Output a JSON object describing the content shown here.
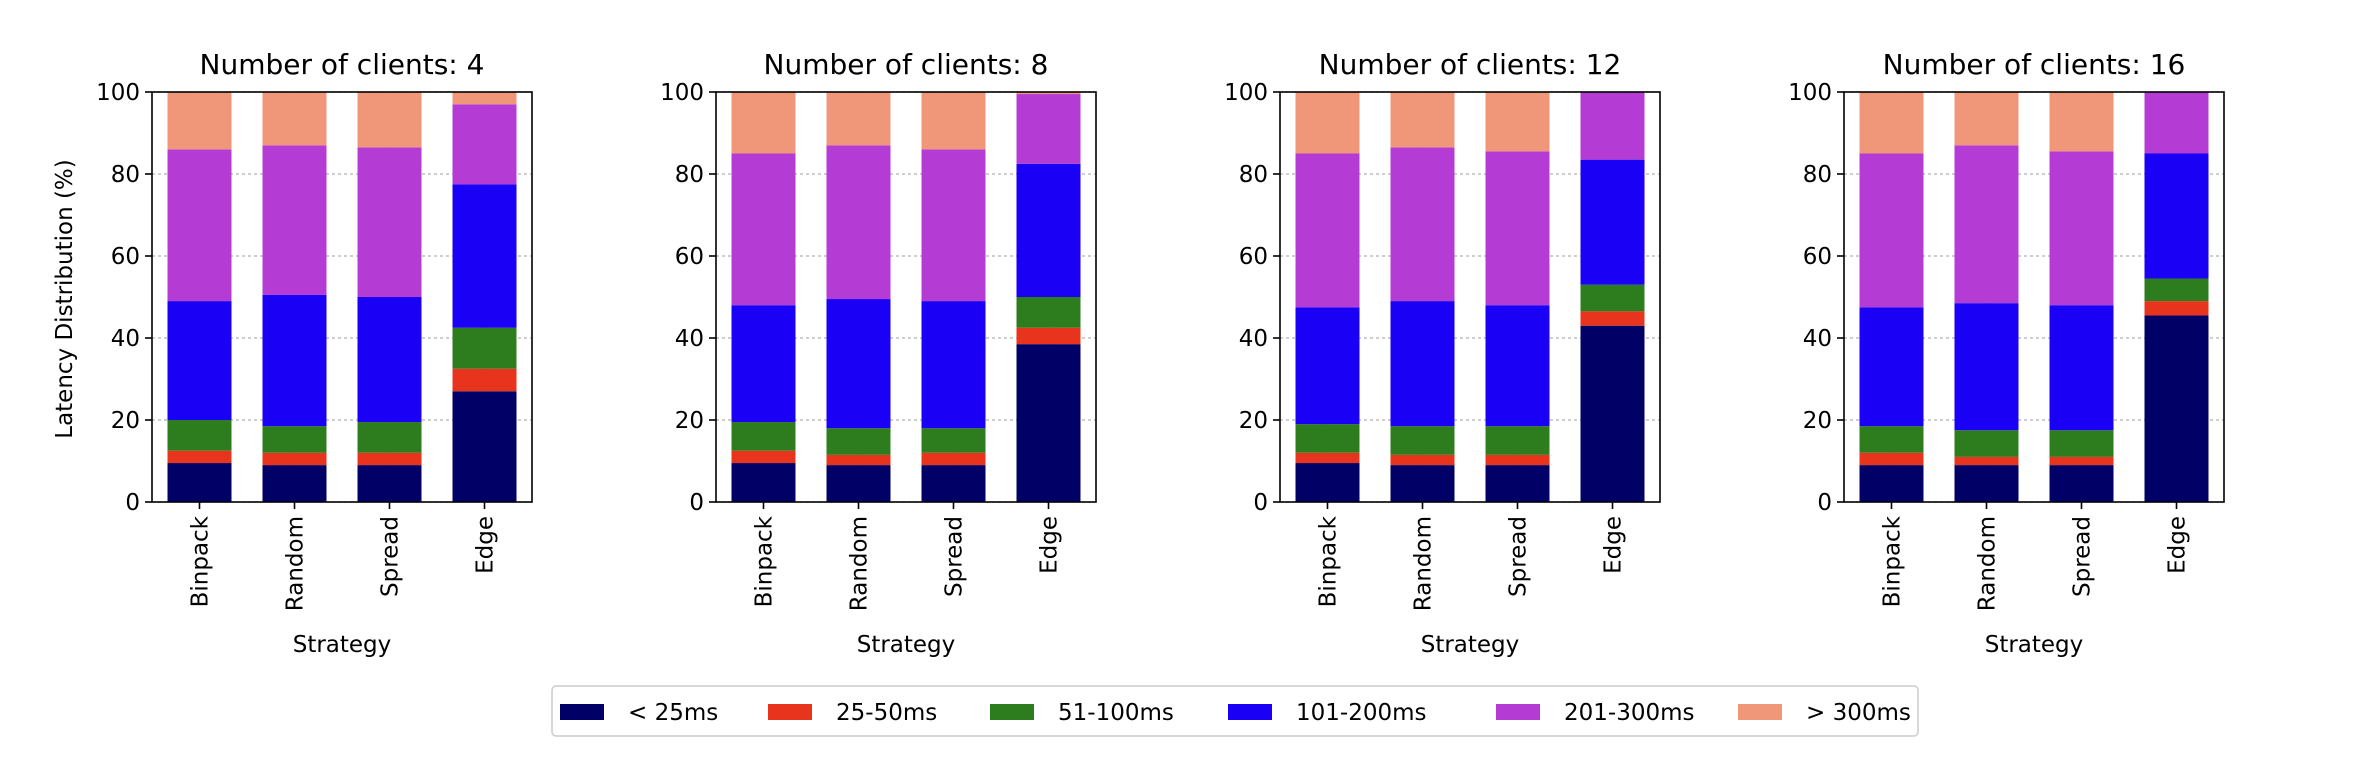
{
  "chart_data": {
    "type": "bar",
    "stacked": true,
    "ylabel": "Latency Distribution (%)",
    "xlabel": "Strategy",
    "ylim": [
      0,
      100
    ],
    "yticks": [
      "0",
      "20",
      "40",
      "60",
      "80",
      "100"
    ],
    "grid": true,
    "legend_position": "bottom-center",
    "categories": [
      "Binpack",
      "Random",
      "Spread",
      "Edge"
    ],
    "series_names": [
      "< 25ms",
      "25-50ms",
      "51-100ms",
      "101-200ms",
      "201-300ms",
      "> 300ms"
    ],
    "colors": [
      "#000066",
      "#e8341c",
      "#2d7d1f",
      "#1a00f5",
      "#b43cd4",
      "#f0977a"
    ],
    "panels": [
      {
        "title": "Number of clients: 4",
        "series": [
          {
            "name": "< 25ms",
            "values": [
              9.5,
              9,
              9,
              27
            ]
          },
          {
            "name": "25-50ms",
            "values": [
              3,
              3,
              3,
              5.5
            ]
          },
          {
            "name": "51-100ms",
            "values": [
              7.5,
              6.5,
              7.5,
              10
            ]
          },
          {
            "name": "101-200ms",
            "values": [
              29,
              32,
              30.5,
              35
            ]
          },
          {
            "name": "201-300ms",
            "values": [
              37,
              36.5,
              36.5,
              19.5
            ]
          },
          {
            "name": "> 300ms",
            "values": [
              14,
              13,
              13.5,
              3
            ]
          }
        ]
      },
      {
        "title": "Number of clients: 8",
        "series": [
          {
            "name": "< 25ms",
            "values": [
              9.5,
              9,
              9,
              38.5
            ]
          },
          {
            "name": "25-50ms",
            "values": [
              3,
              2.5,
              3,
              4
            ]
          },
          {
            "name": "51-100ms",
            "values": [
              7,
              6.5,
              6,
              7.5
            ]
          },
          {
            "name": "101-200ms",
            "values": [
              28.5,
              31.5,
              31,
              32.5
            ]
          },
          {
            "name": "201-300ms",
            "values": [
              37,
              37.5,
              37,
              17
            ]
          },
          {
            "name": "> 300ms",
            "values": [
              15,
              13,
              14,
              0.5
            ]
          }
        ]
      },
      {
        "title": "Number of clients: 12",
        "series": [
          {
            "name": "< 25ms",
            "values": [
              9.5,
              9,
              9,
              43
            ]
          },
          {
            "name": "25-50ms",
            "values": [
              2.5,
              2.5,
              2.5,
              3.5
            ]
          },
          {
            "name": "51-100ms",
            "values": [
              7,
              7,
              7,
              6.5
            ]
          },
          {
            "name": "101-200ms",
            "values": [
              28.5,
              30.5,
              29.5,
              30.5
            ]
          },
          {
            "name": "201-300ms",
            "values": [
              37.5,
              37.5,
              37.5,
              16.5
            ]
          },
          {
            "name": "> 300ms",
            "values": [
              15,
              13.5,
              14.5,
              0
            ]
          }
        ]
      },
      {
        "title": "Number of clients: 16",
        "series": [
          {
            "name": "< 25ms",
            "values": [
              9,
              9,
              9,
              45.5
            ]
          },
          {
            "name": "25-50ms",
            "values": [
              3,
              2,
              2,
              3.5
            ]
          },
          {
            "name": "51-100ms",
            "values": [
              6.5,
              6.5,
              6.5,
              5.5
            ]
          },
          {
            "name": "101-200ms",
            "values": [
              29,
              31,
              30.5,
              30.5
            ]
          },
          {
            "name": "201-300ms",
            "values": [
              37.5,
              38.5,
              37.5,
              15
            ]
          },
          {
            "name": "> 300ms",
            "values": [
              15,
              13,
              14.5,
              0
            ]
          }
        ]
      }
    ]
  }
}
